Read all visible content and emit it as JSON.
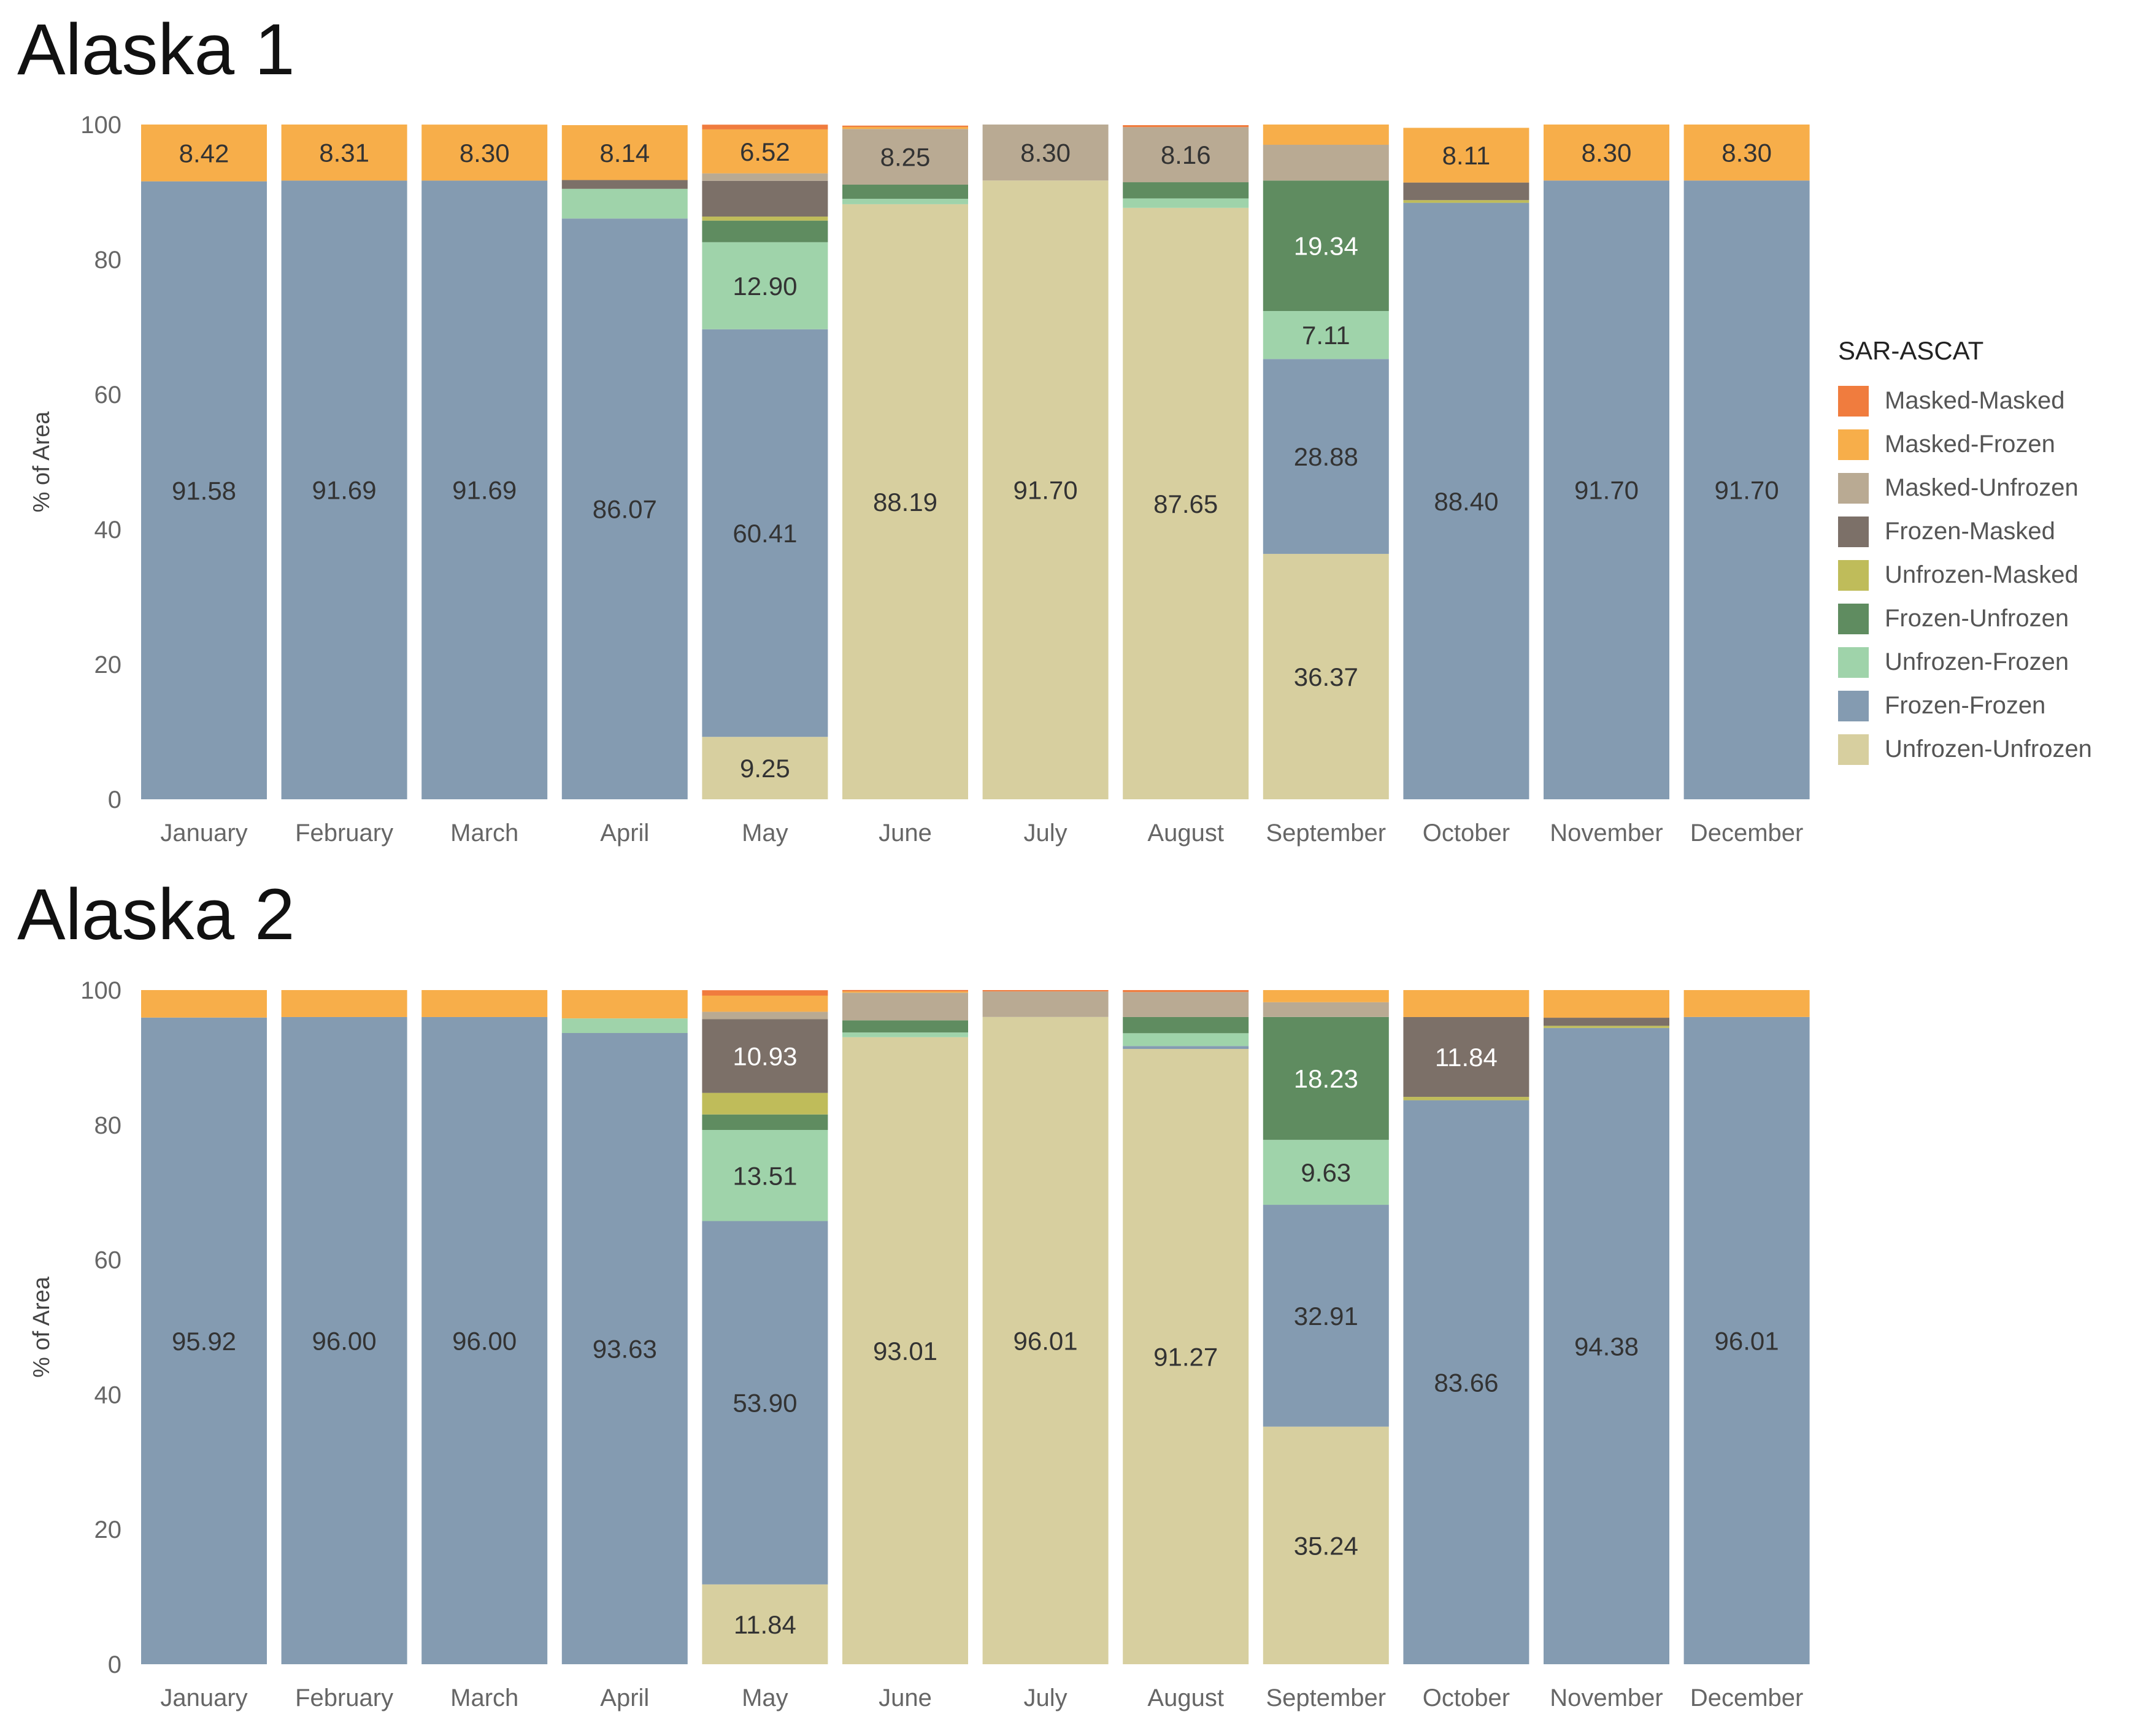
{
  "chart_data": {
    "type": "bar",
    "stacked": true,
    "ylabel": "% of Area",
    "ylim": [
      0,
      100
    ],
    "yticks": [
      0,
      20,
      40,
      60,
      80,
      100
    ],
    "grid": false,
    "legend_position": "right",
    "legend_title": "SAR-ASCAT",
    "categories": [
      "January",
      "February",
      "March",
      "April",
      "May",
      "June",
      "July",
      "August",
      "September",
      "October",
      "November",
      "December"
    ],
    "stack_order": [
      "Unfrozen-Unfrozen",
      "Frozen-Frozen",
      "Unfrozen-Frozen",
      "Frozen-Unfrozen",
      "Unfrozen-Masked",
      "Frozen-Masked",
      "Masked-Unfrozen",
      "Masked-Frozen",
      "Masked-Masked"
    ],
    "series_legend": [
      {
        "name": "Masked-Masked",
        "color": "#f07c3e"
      },
      {
        "name": "Masked-Frozen",
        "color": "#f7ae4a"
      },
      {
        "name": "Masked-Unfrozen",
        "color": "#b9aa93"
      },
      {
        "name": "Frozen-Masked",
        "color": "#7c7068"
      },
      {
        "name": "Unfrozen-Masked",
        "color": "#bfbc5a"
      },
      {
        "name": "Frozen-Unfrozen",
        "color": "#5f8c60"
      },
      {
        "name": "Unfrozen-Frozen",
        "color": "#9fd3aa"
      },
      {
        "name": "Frozen-Frozen",
        "color": "#849bb1"
      },
      {
        "name": "Unfrozen-Unfrozen",
        "color": "#d7cf9f"
      }
    ],
    "panels": [
      {
        "title": "Alaska 1",
        "bars": [
          {
            "Masked-Masked": 0,
            "Masked-Frozen": 8.42,
            "Masked-Unfrozen": 0,
            "Frozen-Masked": 0,
            "Unfrozen-Masked": 0,
            "Frozen-Unfrozen": 0,
            "Unfrozen-Frozen": 0,
            "Frozen-Frozen": 91.58,
            "Unfrozen-Unfrozen": 0
          },
          {
            "Masked-Masked": 0,
            "Masked-Frozen": 8.31,
            "Masked-Unfrozen": 0,
            "Frozen-Masked": 0,
            "Unfrozen-Masked": 0,
            "Frozen-Unfrozen": 0,
            "Unfrozen-Frozen": 0,
            "Frozen-Frozen": 91.69,
            "Unfrozen-Unfrozen": 0
          },
          {
            "Masked-Masked": 0,
            "Masked-Frozen": 8.3,
            "Masked-Unfrozen": 0,
            "Frozen-Masked": 0,
            "Unfrozen-Masked": 0,
            "Frozen-Unfrozen": 0,
            "Unfrozen-Frozen": 0,
            "Frozen-Frozen": 91.69,
            "Unfrozen-Unfrozen": 0
          },
          {
            "Masked-Masked": 0,
            "Masked-Frozen": 8.14,
            "Masked-Unfrozen": 0,
            "Frozen-Masked": 1.3,
            "Unfrozen-Masked": 0,
            "Frozen-Unfrozen": 0,
            "Unfrozen-Frozen": 4.4,
            "Frozen-Frozen": 86.07,
            "Unfrozen-Unfrozen": 0
          },
          {
            "Masked-Masked": 0.7,
            "Masked-Frozen": 6.52,
            "Masked-Unfrozen": 1.1,
            "Frozen-Masked": 5.3,
            "Unfrozen-Masked": 0.6,
            "Frozen-Unfrozen": 3.2,
            "Unfrozen-Frozen": 12.9,
            "Frozen-Frozen": 60.41,
            "Unfrozen-Unfrozen": 9.25
          },
          {
            "Masked-Masked": 0.2,
            "Masked-Frozen": 0.3,
            "Masked-Unfrozen": 8.25,
            "Frozen-Masked": 0,
            "Unfrozen-Masked": 0,
            "Frozen-Unfrozen": 2.1,
            "Unfrozen-Frozen": 0.8,
            "Frozen-Frozen": 0,
            "Unfrozen-Unfrozen": 88.19
          },
          {
            "Masked-Masked": 0,
            "Masked-Frozen": 0,
            "Masked-Unfrozen": 8.3,
            "Frozen-Masked": 0,
            "Unfrozen-Masked": 0,
            "Frozen-Unfrozen": 0,
            "Unfrozen-Frozen": 0,
            "Frozen-Frozen": 0,
            "Unfrozen-Unfrozen": 91.7
          },
          {
            "Masked-Masked": 0.3,
            "Masked-Frozen": 0,
            "Masked-Unfrozen": 8.16,
            "Frozen-Masked": 0,
            "Unfrozen-Masked": 0,
            "Frozen-Unfrozen": 2.4,
            "Unfrozen-Frozen": 1.4,
            "Frozen-Frozen": 0,
            "Unfrozen-Unfrozen": 87.65
          },
          {
            "Masked-Masked": 0,
            "Masked-Frozen": 3,
            "Masked-Unfrozen": 5.3,
            "Frozen-Masked": 0,
            "Unfrozen-Masked": 0,
            "Frozen-Unfrozen": 19.34,
            "Unfrozen-Frozen": 7.11,
            "Frozen-Frozen": 28.88,
            "Unfrozen-Unfrozen": 36.37
          },
          {
            "Masked-Masked": 0,
            "Masked-Frozen": 8.11,
            "Masked-Unfrozen": 0,
            "Frozen-Masked": 2.6,
            "Unfrozen-Masked": 0.4,
            "Frozen-Unfrozen": 0,
            "Unfrozen-Frozen": 0,
            "Frozen-Frozen": 88.4,
            "Unfrozen-Unfrozen": 0
          },
          {
            "Masked-Masked": 0,
            "Masked-Frozen": 8.3,
            "Masked-Unfrozen": 0,
            "Frozen-Masked": 0,
            "Unfrozen-Masked": 0,
            "Frozen-Unfrozen": 0,
            "Unfrozen-Frozen": 0,
            "Frozen-Frozen": 91.7,
            "Unfrozen-Unfrozen": 0
          },
          {
            "Masked-Masked": 0,
            "Masked-Frozen": 8.3,
            "Masked-Unfrozen": 0,
            "Frozen-Masked": 0,
            "Unfrozen-Masked": 0,
            "Frozen-Unfrozen": 0,
            "Unfrozen-Frozen": 0,
            "Frozen-Frozen": 91.7,
            "Unfrozen-Unfrozen": 0
          }
        ],
        "labels": [
          [
            {
              "series": "Masked-Frozen",
              "text": "8.42"
            },
            {
              "series": "Frozen-Frozen",
              "text": "91.58"
            }
          ],
          [
            {
              "series": "Masked-Frozen",
              "text": "8.31"
            },
            {
              "series": "Frozen-Frozen",
              "text": "91.69"
            }
          ],
          [
            {
              "series": "Masked-Frozen",
              "text": "8.30"
            },
            {
              "series": "Frozen-Frozen",
              "text": "91.69"
            }
          ],
          [
            {
              "series": "Masked-Frozen",
              "text": "8.14"
            },
            {
              "series": "Frozen-Frozen",
              "text": "86.07"
            }
          ],
          [
            {
              "series": "Masked-Frozen",
              "text": "6.52"
            },
            {
              "series": "Unfrozen-Frozen",
              "text": "12.90"
            },
            {
              "series": "Frozen-Frozen",
              "text": "60.41"
            },
            {
              "series": "Unfrozen-Unfrozen",
              "text": "9.25"
            }
          ],
          [
            {
              "series": "Masked-Unfrozen",
              "text": "8.25"
            },
            {
              "series": "Unfrozen-Unfrozen",
              "text": "88.19"
            }
          ],
          [
            {
              "series": "Masked-Unfrozen",
              "text": "8.30"
            },
            {
              "series": "Unfrozen-Unfrozen",
              "text": "91.70"
            }
          ],
          [
            {
              "series": "Masked-Unfrozen",
              "text": "8.16"
            },
            {
              "series": "Unfrozen-Unfrozen",
              "text": "87.65"
            }
          ],
          [
            {
              "series": "Frozen-Unfrozen",
              "text": "19.34"
            },
            {
              "series": "Unfrozen-Frozen",
              "text": "7.11"
            },
            {
              "series": "Frozen-Frozen",
              "text": "28.88"
            },
            {
              "series": "Unfrozen-Unfrozen",
              "text": "36.37"
            }
          ],
          [
            {
              "series": "Masked-Frozen",
              "text": "8.11"
            },
            {
              "series": "Frozen-Frozen",
              "text": "88.40"
            }
          ],
          [
            {
              "series": "Masked-Frozen",
              "text": "8.30"
            },
            {
              "series": "Frozen-Frozen",
              "text": "91.70"
            }
          ],
          [
            {
              "series": "Masked-Frozen",
              "text": "8.30"
            },
            {
              "series": "Frozen-Frozen",
              "text": "91.70"
            }
          ]
        ]
      },
      {
        "title": "Alaska 2",
        "bars": [
          {
            "Masked-Masked": 0,
            "Masked-Frozen": 4.08,
            "Masked-Unfrozen": 0,
            "Frozen-Masked": 0,
            "Unfrozen-Masked": 0,
            "Frozen-Unfrozen": 0,
            "Unfrozen-Frozen": 0,
            "Frozen-Frozen": 95.92,
            "Unfrozen-Unfrozen": 0
          },
          {
            "Masked-Masked": 0,
            "Masked-Frozen": 4,
            "Masked-Unfrozen": 0,
            "Frozen-Masked": 0,
            "Unfrozen-Masked": 0,
            "Frozen-Unfrozen": 0,
            "Unfrozen-Frozen": 0,
            "Frozen-Frozen": 96,
            "Unfrozen-Unfrozen": 0
          },
          {
            "Masked-Masked": 0,
            "Masked-Frozen": 4,
            "Masked-Unfrozen": 0,
            "Frozen-Masked": 0,
            "Unfrozen-Masked": 0,
            "Frozen-Unfrozen": 0,
            "Unfrozen-Frozen": 0,
            "Frozen-Frozen": 96,
            "Unfrozen-Unfrozen": 0
          },
          {
            "Masked-Masked": 0,
            "Masked-Frozen": 4.2,
            "Masked-Unfrozen": 0,
            "Frozen-Masked": 0,
            "Unfrozen-Masked": 0,
            "Frozen-Unfrozen": 0,
            "Unfrozen-Frozen": 2.17,
            "Frozen-Frozen": 93.63,
            "Unfrozen-Unfrozen": 0
          },
          {
            "Masked-Masked": 0.8,
            "Masked-Frozen": 2.4,
            "Masked-Unfrozen": 1.1,
            "Frozen-Masked": 10.93,
            "Unfrozen-Masked": 3.2,
            "Frozen-Unfrozen": 2.3,
            "Unfrozen-Frozen": 13.51,
            "Frozen-Frozen": 53.9,
            "Unfrozen-Unfrozen": 11.84
          },
          {
            "Masked-Masked": 0.2,
            "Masked-Frozen": 0.2,
            "Masked-Unfrozen": 4.1,
            "Frozen-Masked": 0,
            "Unfrozen-Masked": 0,
            "Frozen-Unfrozen": 1.8,
            "Unfrozen-Frozen": 0.7,
            "Frozen-Frozen": 0,
            "Unfrozen-Unfrozen": 93.01
          },
          {
            "Masked-Masked": 0.2,
            "Masked-Frozen": 0,
            "Masked-Unfrozen": 3.79,
            "Frozen-Masked": 0,
            "Unfrozen-Masked": 0,
            "Frozen-Unfrozen": 0,
            "Unfrozen-Frozen": 0,
            "Frozen-Frozen": 0,
            "Unfrozen-Unfrozen": 96.01
          },
          {
            "Masked-Masked": 0.3,
            "Masked-Frozen": 0,
            "Masked-Unfrozen": 3.7,
            "Frozen-Masked": 0,
            "Unfrozen-Masked": 0,
            "Frozen-Unfrozen": 2.4,
            "Unfrozen-Frozen": 1.9,
            "Frozen-Frozen": 0.43,
            "Unfrozen-Unfrozen": 91.27
          },
          {
            "Masked-Masked": 0,
            "Masked-Frozen": 1.8,
            "Masked-Unfrozen": 2.19,
            "Frozen-Masked": 0,
            "Unfrozen-Masked": 0,
            "Frozen-Unfrozen": 18.23,
            "Unfrozen-Frozen": 9.63,
            "Frozen-Frozen": 32.91,
            "Unfrozen-Unfrozen": 35.24
          },
          {
            "Masked-Masked": 0,
            "Masked-Frozen": 4,
            "Masked-Unfrozen": 0,
            "Frozen-Masked": 11.84,
            "Unfrozen-Masked": 0.5,
            "Frozen-Unfrozen": 0,
            "Unfrozen-Frozen": 0,
            "Frozen-Frozen": 83.66,
            "Unfrozen-Unfrozen": 0
          },
          {
            "Masked-Masked": 0,
            "Masked-Frozen": 4.1,
            "Masked-Unfrozen": 0,
            "Frozen-Masked": 1.2,
            "Unfrozen-Masked": 0.32,
            "Frozen-Unfrozen": 0,
            "Unfrozen-Frozen": 0,
            "Frozen-Frozen": 94.38,
            "Unfrozen-Unfrozen": 0
          },
          {
            "Masked-Masked": 0,
            "Masked-Frozen": 3.99,
            "Masked-Unfrozen": 0,
            "Frozen-Masked": 0,
            "Unfrozen-Masked": 0,
            "Frozen-Unfrozen": 0,
            "Unfrozen-Frozen": 0,
            "Frozen-Frozen": 96.01,
            "Unfrozen-Unfrozen": 0
          }
        ],
        "labels": [
          [
            {
              "series": "Frozen-Frozen",
              "text": "95.92"
            }
          ],
          [
            {
              "series": "Frozen-Frozen",
              "text": "96.00"
            }
          ],
          [
            {
              "series": "Frozen-Frozen",
              "text": "96.00"
            }
          ],
          [
            {
              "series": "Frozen-Frozen",
              "text": "93.63"
            }
          ],
          [
            {
              "series": "Frozen-Masked",
              "text": "10.93"
            },
            {
              "series": "Unfrozen-Frozen",
              "text": "13.51"
            },
            {
              "series": "Frozen-Frozen",
              "text": "53.90"
            },
            {
              "series": "Unfrozen-Unfrozen",
              "text": "11.84"
            }
          ],
          [
            {
              "series": "Unfrozen-Unfrozen",
              "text": "93.01"
            }
          ],
          [
            {
              "series": "Unfrozen-Unfrozen",
              "text": "96.01"
            }
          ],
          [
            {
              "series": "Unfrozen-Unfrozen",
              "text": "91.27"
            }
          ],
          [
            {
              "series": "Frozen-Unfrozen",
              "text": "18.23"
            },
            {
              "series": "Unfrozen-Frozen",
              "text": "9.63"
            },
            {
              "series": "Frozen-Frozen",
              "text": "32.91"
            },
            {
              "series": "Unfrozen-Unfrozen",
              "text": "35.24"
            }
          ],
          [
            {
              "series": "Frozen-Masked",
              "text": "11.84"
            },
            {
              "series": "Frozen-Frozen",
              "text": "83.66"
            }
          ],
          [
            {
              "series": "Frozen-Frozen",
              "text": "94.38"
            }
          ],
          [
            {
              "series": "Frozen-Frozen",
              "text": "96.01"
            }
          ]
        ]
      }
    ]
  }
}
